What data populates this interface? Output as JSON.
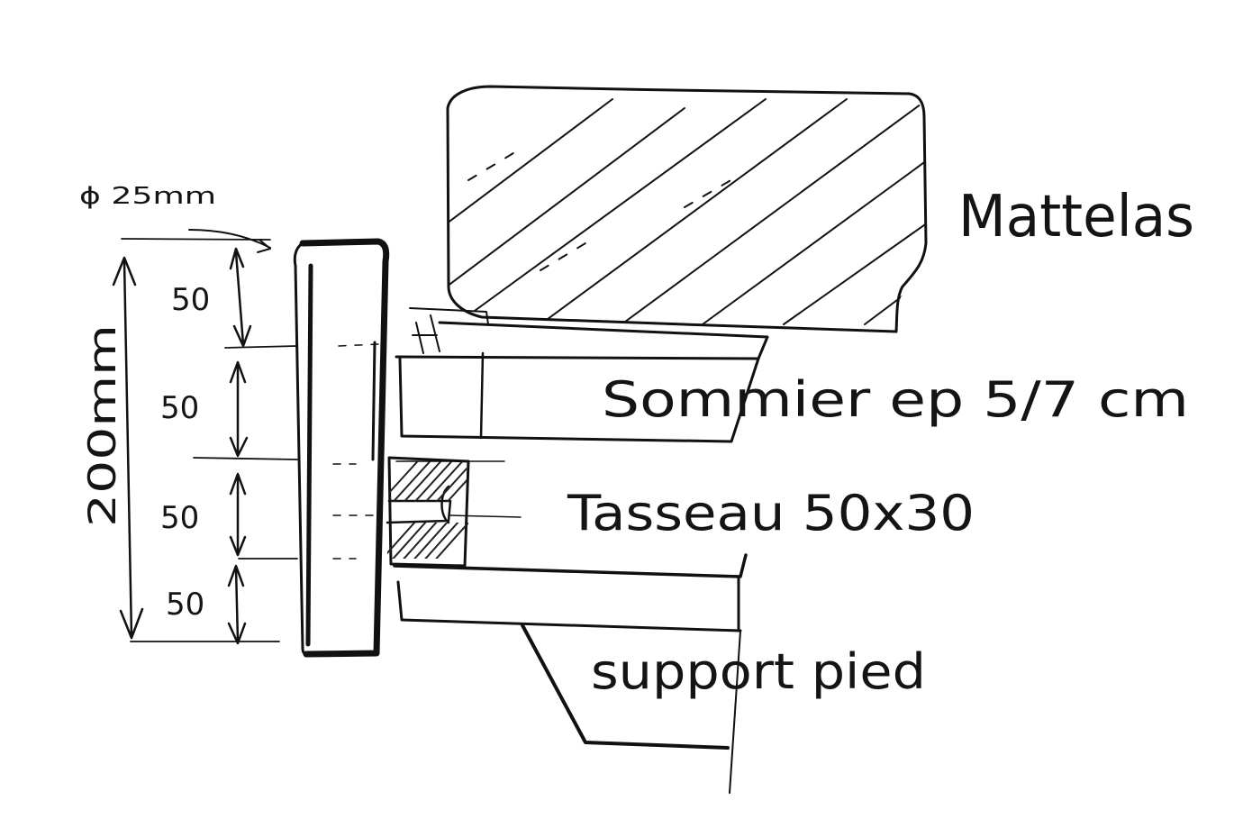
{
  "labels": {
    "mattress": "Mattelas",
    "slatted_base": "Sommier ep 5/7 cm",
    "cleat": "Tasseau 50x30",
    "foot_support": "support pied",
    "diameter": "ϕ 25mm",
    "total_height": "200mm"
  },
  "dimensions": [
    "50",
    "50",
    "50",
    "50"
  ],
  "colors": {
    "ink": "#111111",
    "paper": "#ffffff"
  }
}
